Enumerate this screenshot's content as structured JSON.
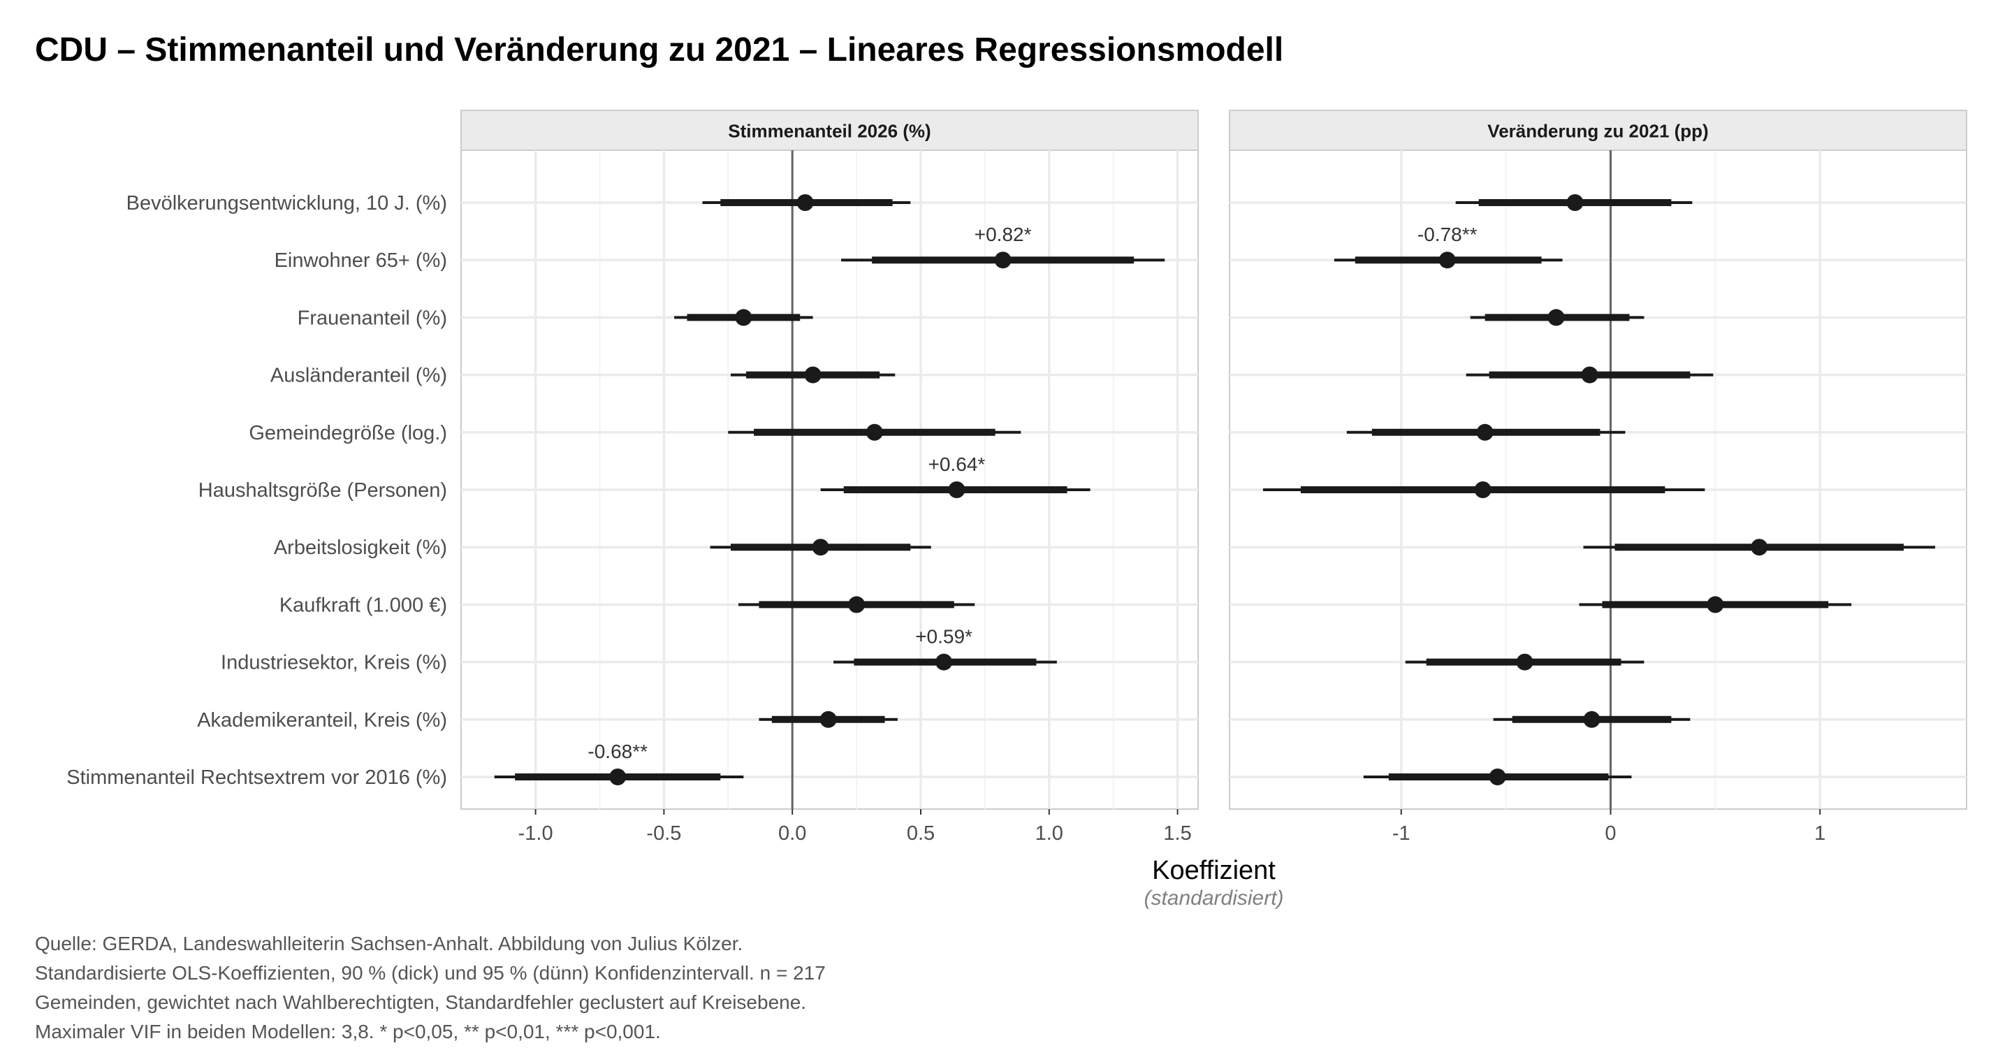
{
  "title": "CDU – Stimmenanteil und Veränderung zu 2021 – Lineares Regressionsmodell",
  "caption": "Quelle: GERDA, Landeswahlleiterin Sachsen-Anhalt. Abbildung von Julius Kölzer. Standardisierte OLS-Koeffizienten, 90 % (dick) und 95 % (dünn) Konfidenzintervall. n = 217 Gemeinden, gewichtet nach Wahlberechtigten, Standardfehler geclustert auf Kreisebene. Maximaler VIF in beiden Modellen: 3,8. * p<0,05, ** p<0,01, *** p<0,001.",
  "colors": {
    "panel_strip": "#ebebeb",
    "grid": "#ebebeb",
    "point": "#1a1a1a",
    "zero_line": "#666666"
  },
  "chart_data": {
    "type": "coefficient_plot",
    "xlabel": "Koeffizient",
    "xlabel_sub": "(standardisiert)",
    "grid": true,
    "categories": [
      "Bevölkerungsentwicklung, 10 J. (%)",
      "Einwohner 65+ (%)",
      "Frauenanteil (%)",
      "Ausländeranteil (%)",
      "Gemeindegröße (log.)",
      "Haushaltsgröße (Personen)",
      "Arbeitslosigkeit (%)",
      "Kaufkraft (1.000 €)",
      "Industriesektor, Kreis (%)",
      "Akademikeranteil, Kreis (%)",
      "Stimmenanteil Rechtsextrem vor 2016 (%)"
    ],
    "panels": [
      {
        "title": "Stimmenanteil 2026 (%)",
        "xlim": [
          -1.29,
          1.58
        ],
        "xticks": [
          -1.0,
          -0.5,
          0.0,
          0.5,
          1.0,
          1.5
        ],
        "xtick_labels": [
          "-1.0",
          "-0.5",
          "0.0",
          "0.5",
          "1.0",
          "1.5"
        ],
        "estimates": [
          0.05,
          0.82,
          -0.19,
          0.08,
          0.32,
          0.64,
          0.11,
          0.25,
          0.59,
          0.14,
          -0.68
        ],
        "ci90_low": [
          -0.28,
          0.31,
          -0.41,
          -0.18,
          -0.15,
          0.2,
          -0.24,
          -0.13,
          0.24,
          -0.08,
          -1.08
        ],
        "ci90_high": [
          0.39,
          1.33,
          0.03,
          0.34,
          0.79,
          1.07,
          0.46,
          0.63,
          0.95,
          0.36,
          -0.28
        ],
        "ci95_low": [
          -0.35,
          0.19,
          -0.46,
          -0.24,
          -0.25,
          0.11,
          -0.32,
          -0.21,
          0.16,
          -0.13,
          -1.16
        ],
        "ci95_high": [
          0.46,
          1.45,
          0.08,
          0.4,
          0.89,
          1.16,
          0.54,
          0.71,
          1.03,
          0.41,
          -0.19
        ],
        "labels": [
          "",
          "+0.82*",
          "",
          "",
          "",
          "+0.64*",
          "",
          "",
          "+0.59*",
          "",
          "-0.68**"
        ]
      },
      {
        "title": "Veränderung zu 2021 (pp)",
        "xlim": [
          -1.82,
          1.7
        ],
        "xticks": [
          -1,
          0,
          1
        ],
        "xtick_labels": [
          "-1",
          "0",
          "1"
        ],
        "estimates": [
          -0.17,
          -0.78,
          -0.26,
          -0.1,
          -0.6,
          -0.61,
          0.71,
          0.5,
          -0.41,
          -0.09,
          -0.54
        ],
        "ci90_low": [
          -0.63,
          -1.22,
          -0.6,
          -0.58,
          -1.14,
          -1.48,
          0.02,
          -0.04,
          -0.88,
          -0.47,
          -1.06
        ],
        "ci90_high": [
          0.29,
          -0.33,
          0.09,
          0.38,
          -0.05,
          0.26,
          1.4,
          1.04,
          0.05,
          0.29,
          -0.01
        ],
        "ci95_low": [
          -0.74,
          -1.32,
          -0.67,
          -0.69,
          -1.26,
          -1.66,
          -0.13,
          -0.15,
          -0.98,
          -0.56,
          -1.18
        ],
        "ci95_high": [
          0.39,
          -0.23,
          0.16,
          0.49,
          0.07,
          0.45,
          1.55,
          1.15,
          0.16,
          0.38,
          0.1
        ],
        "labels": [
          "",
          "-0.78**",
          "",
          "",
          "",
          "",
          "",
          "",
          "",
          "",
          ""
        ]
      }
    ]
  }
}
